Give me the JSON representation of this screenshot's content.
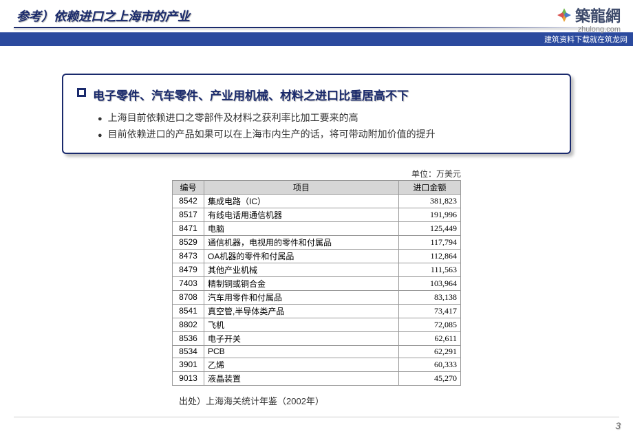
{
  "header": {
    "title": "参考）依赖进口之上海市的产业",
    "logo_text": "築龍網",
    "logo_sub": "zhulong.com",
    "banner": "建筑资料下载就在筑龙网"
  },
  "summary": {
    "heading": "电子零件、汽车零件、产业用机械、材料之进口比重居高不下",
    "bullets": [
      "上海目前依赖进口之零部件及材料之获利率比加工要来的高",
      "目前依赖进口的产品如果可以在上海市内生产的话，将可带动附加价值的提升"
    ]
  },
  "table": {
    "unit": "单位：万美元",
    "columns": [
      "编号",
      "项目",
      "进口金额"
    ],
    "rows": [
      {
        "code": "8542",
        "item": "集成电路（IC）",
        "amount": "381,823"
      },
      {
        "code": "8517",
        "item": "有线电话用通信机器",
        "amount": "191,996"
      },
      {
        "code": "8471",
        "item": "电脑",
        "amount": "125,449"
      },
      {
        "code": "8529",
        "item": "通信机器，电视用的零件和付属品",
        "amount": "117,794"
      },
      {
        "code": "8473",
        "item": "OA机器的零件和付属品",
        "amount": "112,864"
      },
      {
        "code": "8479",
        "item": "其他产业机械",
        "amount": "111,563"
      },
      {
        "code": "7403",
        "item": "精制铜或铜合金",
        "amount": "103,964"
      },
      {
        "code": "8708",
        "item": "汽车用零件和付属品",
        "amount": "83,138"
      },
      {
        "code": "8541",
        "item": "真空管,半导体类产品",
        "amount": "73,417"
      },
      {
        "code": "8802",
        "item": "飞机",
        "amount": "72,085"
      },
      {
        "code": "8536",
        "item": "电子开关",
        "amount": "62,611"
      },
      {
        "code": "8534",
        "item": "PCB",
        "amount": "62,291"
      },
      {
        "code": "3901",
        "item": "乙烯",
        "amount": "60,333"
      },
      {
        "code": "9013",
        "item": "液晶装置",
        "amount": "45,270"
      }
    ],
    "source": "出处）上海海关统计年鉴（2002年）"
  },
  "page_number": "3"
}
